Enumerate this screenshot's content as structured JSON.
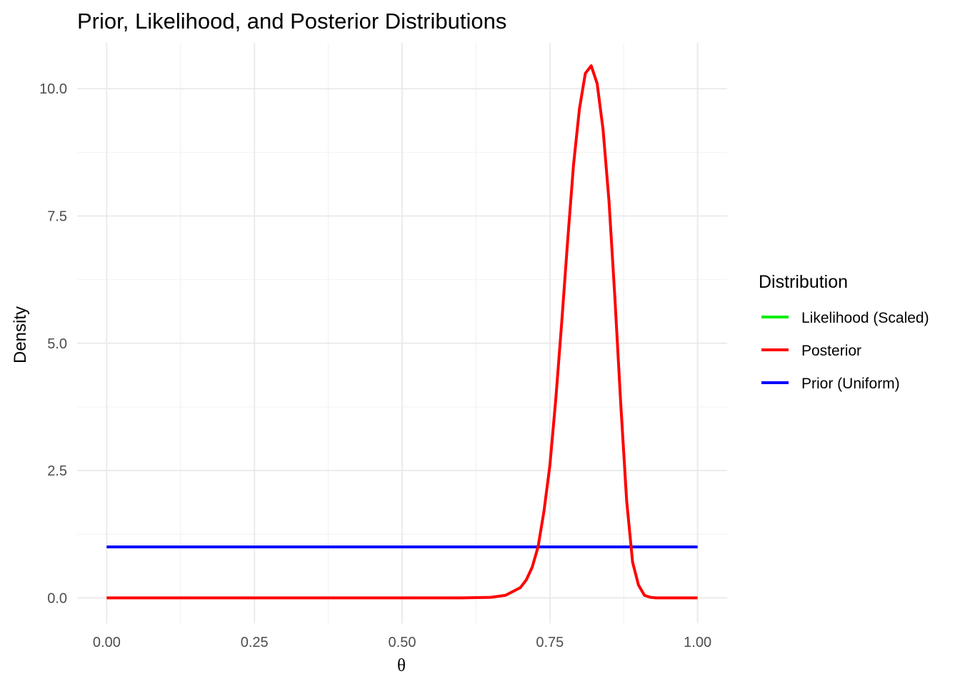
{
  "chart_data": {
    "type": "line",
    "title": "Prior, Likelihood, and Posterior Distributions",
    "xlabel": "θ",
    "ylabel": "Density",
    "xlim": [
      -0.05,
      1.05
    ],
    "ylim": [
      -0.5,
      10.9
    ],
    "x_ticks": [
      0,
      0.25,
      0.5,
      0.75,
      1
    ],
    "x_tick_labels": [
      "0.00",
      "0.25",
      "0.50",
      "0.75",
      "1.00"
    ],
    "y_ticks": [
      0,
      2.5,
      5,
      7.5,
      10
    ],
    "y_tick_labels": [
      "0.0",
      "2.5",
      "5.0",
      "7.5",
      "10.0"
    ],
    "grid": true,
    "legend": {
      "title": "Distribution",
      "position": "right"
    },
    "series": [
      {
        "name": "Likelihood (Scaled)",
        "color": "#00ee00",
        "visible_line": false,
        "x": [],
        "y": []
      },
      {
        "name": "Posterior",
        "color": "#ff0000",
        "x": [
          0,
          0.6,
          0.65,
          0.675,
          0.7,
          0.71,
          0.72,
          0.73,
          0.74,
          0.75,
          0.76,
          0.77,
          0.78,
          0.79,
          0.8,
          0.81,
          0.82,
          0.83,
          0.84,
          0.85,
          0.86,
          0.87,
          0.88,
          0.89,
          0.9,
          0.91,
          0.92,
          0.93,
          0.95,
          1
        ],
        "y": [
          0,
          0.0,
          0.01,
          0.05,
          0.2,
          0.35,
          0.6,
          1.0,
          1.7,
          2.6,
          3.9,
          5.4,
          7.0,
          8.5,
          9.6,
          10.3,
          10.45,
          10.1,
          9.2,
          7.8,
          5.9,
          3.8,
          1.9,
          0.7,
          0.25,
          0.05,
          0.01,
          0.0,
          0,
          0
        ]
      },
      {
        "name": "Prior (Uniform)",
        "color": "#0000ff",
        "x": [
          0,
          1
        ],
        "y": [
          1,
          1
        ]
      }
    ]
  }
}
